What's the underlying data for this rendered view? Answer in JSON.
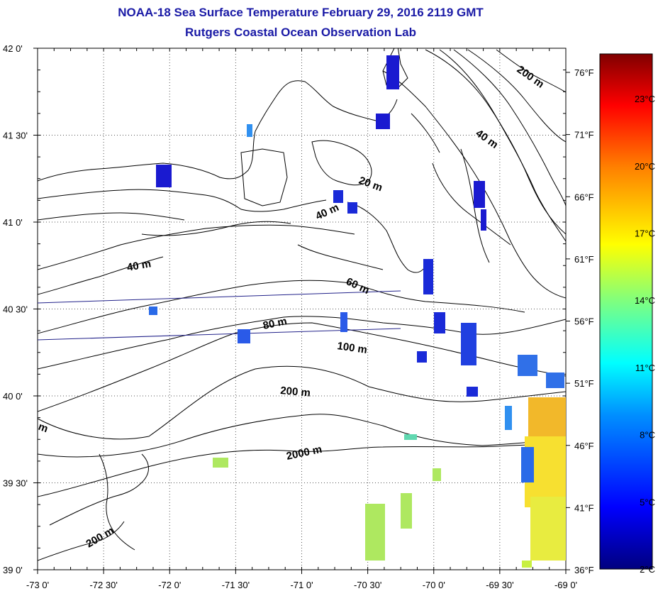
{
  "title": "NOAA-18 Sea Surface Temperature February 29, 2016 2119 GMT",
  "subtitle": "Rutgers Coastal Ocean Observation Lab",
  "map": {
    "lon_range": [
      -73.0,
      -69.0
    ],
    "lat_range": [
      39.0,
      42.0
    ],
    "x_ticks": [
      "-73 0'",
      "-72 30'",
      "-72 0'",
      "-71 30'",
      "-71 0'",
      "-70 30'",
      "-70 0'",
      "-69 30'",
      "-69 0'"
    ],
    "y_ticks": [
      "42 0'",
      "41 30'",
      "41 0'",
      "40 30'",
      "40 0'",
      "39 30'",
      "39 0'"
    ],
    "grid": "dotted",
    "depth_labels": [
      "200 m",
      "40 m",
      "20 m",
      "40 m",
      "40 m",
      "60 m",
      "80 m",
      "100 m",
      "200 m",
      "2000 m",
      "200 m",
      "m"
    ]
  },
  "fahrenheit_ticks": [
    "76°F",
    "71°F",
    "66°F",
    "61°F",
    "56°F",
    "51°F",
    "46°F",
    "41°F",
    "36°F"
  ],
  "colorbar": {
    "celsius_ticks": [
      "23°C",
      "20°C",
      "17°C",
      "14°C",
      "11°C",
      "8°C",
      "5°C",
      "2°C"
    ],
    "range_c": [
      2,
      25
    ]
  },
  "colors": {
    "title": "#1a1aa6",
    "land_patch": "#1a1ad0",
    "coast": "#000000"
  }
}
